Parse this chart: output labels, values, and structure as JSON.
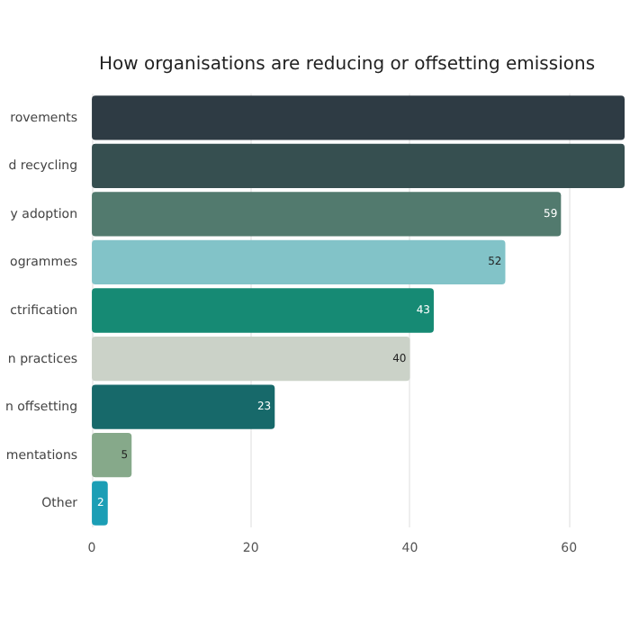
{
  "chart_data": {
    "type": "bar",
    "orientation": "horizontal",
    "title": "How organisations are reducing or offsetting emissions",
    "categories": [
      "rovements",
      "d recycling",
      "y adoption",
      "ogrammes",
      "ctrification",
      "n practices",
      "n offsetting",
      "mentations",
      "Other"
    ],
    "values": [
      67,
      67,
      59,
      52,
      43,
      40,
      23,
      5,
      2
    ],
    "colors": [
      "#2e3b44",
      "#364f50",
      "#527a6e",
      "#82c3c8",
      "#168a74",
      "#cbd2c8",
      "#17696a",
      "#86a98a",
      "#1b9eb5"
    ],
    "value_labels": [
      null,
      null,
      "59",
      "52",
      "43",
      "40",
      "23",
      "5",
      "2"
    ],
    "xlim": [
      0,
      67
    ],
    "xticks": [
      0,
      20,
      40,
      60
    ],
    "grid": "x"
  }
}
